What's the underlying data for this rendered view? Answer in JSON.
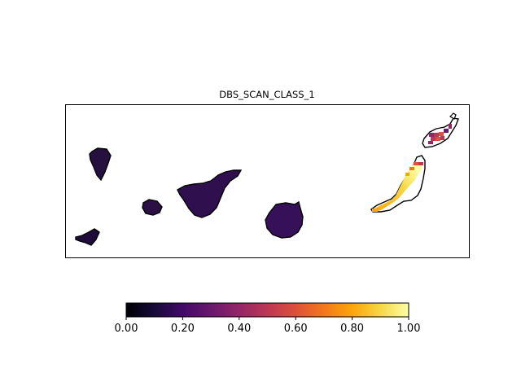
{
  "map": {
    "title": "DBS_SCAN_CLASS_1"
  },
  "colorbar": {
    "colormap": "inferno",
    "min": 0.0,
    "max": 1.0,
    "ticks": [
      "0.00",
      "0.20",
      "0.40",
      "0.60",
      "0.80",
      "1.00"
    ]
  },
  "colors": {
    "frame": "#000000",
    "coastline": "#000000",
    "background": "#ffffff"
  }
}
